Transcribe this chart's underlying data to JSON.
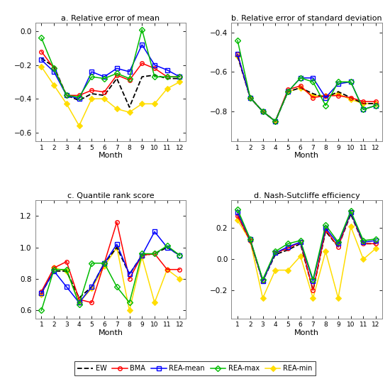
{
  "months": [
    1,
    2,
    3,
    4,
    5,
    6,
    7,
    8,
    9,
    10,
    11,
    12
  ],
  "panel_a": {
    "title": "a. Relative error of mean",
    "ylim": [
      -0.65,
      0.05
    ],
    "yticks": [
      0,
      -0.2,
      -0.4,
      -0.6
    ],
    "EW": [
      -0.16,
      -0.21,
      -0.38,
      -0.41,
      -0.37,
      -0.38,
      -0.28,
      -0.45,
      -0.27,
      -0.26,
      -0.28,
      -0.28
    ],
    "BMA": [
      -0.12,
      -0.22,
      -0.38,
      -0.38,
      -0.35,
      -0.36,
      -0.26,
      -0.29,
      -0.19,
      -0.22,
      -0.27,
      -0.27
    ],
    "REA_mean": [
      -0.17,
      -0.24,
      -0.38,
      -0.4,
      -0.24,
      -0.27,
      -0.22,
      -0.24,
      -0.08,
      -0.2,
      -0.23,
      -0.27
    ],
    "REA_max": [
      -0.04,
      -0.22,
      -0.38,
      -0.39,
      -0.27,
      -0.28,
      -0.25,
      -0.28,
      0.01,
      -0.27,
      -0.27,
      -0.27
    ],
    "REA_min": [
      -0.21,
      -0.32,
      -0.43,
      -0.56,
      -0.4,
      -0.4,
      -0.46,
      -0.48,
      -0.43,
      -0.43,
      -0.34,
      -0.3
    ]
  },
  "panel_b": {
    "title": "b. Relative error of standard deviation",
    "ylim": [
      -0.95,
      -0.35
    ],
    "yticks": [
      -0.4,
      -0.6,
      -0.8
    ],
    "EW": [
      -0.52,
      -0.73,
      -0.8,
      -0.85,
      -0.7,
      -0.68,
      -0.71,
      -0.73,
      -0.7,
      -0.73,
      -0.76,
      -0.76
    ],
    "BMA": [
      -0.51,
      -0.73,
      -0.8,
      -0.85,
      -0.69,
      -0.67,
      -0.73,
      -0.72,
      -0.72,
      -0.73,
      -0.75,
      -0.75
    ],
    "REA_mean": [
      -0.51,
      -0.73,
      -0.8,
      -0.85,
      -0.7,
      -0.63,
      -0.63,
      -0.73,
      -0.66,
      -0.65,
      -0.79,
      -0.77
    ],
    "REA_max": [
      -0.44,
      -0.73,
      -0.8,
      -0.85,
      -0.7,
      -0.63,
      -0.65,
      -0.77,
      -0.65,
      -0.65,
      -0.79,
      -0.77
    ],
    "REA_min": [
      -0.52,
      -0.73,
      -0.8,
      -0.85,
      -0.7,
      -0.68,
      -0.72,
      -0.72,
      -0.71,
      -0.74,
      -0.76,
      -0.76
    ]
  },
  "panel_c": {
    "title": "c. Quantile rank score",
    "ylim": [
      0.55,
      1.3
    ],
    "yticks": [
      0.6,
      0.8,
      1.0,
      1.2
    ],
    "EW": [
      0.71,
      0.85,
      0.85,
      0.68,
      0.75,
      0.9,
      1.0,
      0.83,
      0.95,
      0.96,
      1.0,
      0.95
    ],
    "BMA": [
      0.72,
      0.87,
      0.91,
      0.67,
      0.65,
      0.9,
      1.16,
      0.8,
      0.95,
      0.96,
      0.86,
      0.86
    ],
    "REA_mean": [
      0.71,
      0.85,
      0.75,
      0.65,
      0.75,
      0.9,
      1.02,
      0.83,
      0.95,
      1.1,
      1.0,
      0.95
    ],
    "REA_max": [
      0.6,
      0.86,
      0.86,
      0.64,
      0.9,
      0.9,
      0.75,
      0.65,
      0.96,
      0.96,
      1.01,
      0.95
    ],
    "REA_min": [
      0.7,
      0.87,
      0.85,
      0.65,
      0.74,
      0.88,
      1.0,
      0.6,
      0.94,
      0.65,
      0.86,
      0.8
    ]
  },
  "panel_d": {
    "title": "d. Nash-Sutcliffe efficiency",
    "ylim": [
      -0.38,
      0.38
    ],
    "yticks": [
      -0.2,
      0,
      0.2
    ],
    "EW": [
      0.28,
      0.12,
      -0.14,
      0.03,
      0.06,
      0.1,
      -0.2,
      0.18,
      0.08,
      0.29,
      0.1,
      0.1
    ],
    "BMA": [
      0.28,
      0.12,
      -0.14,
      0.04,
      0.07,
      0.11,
      -0.2,
      0.19,
      0.08,
      0.3,
      0.1,
      0.1
    ],
    "REA_mean": [
      0.3,
      0.13,
      -0.14,
      0.04,
      0.08,
      0.11,
      -0.14,
      0.2,
      0.1,
      0.3,
      0.11,
      0.12
    ],
    "REA_max": [
      0.32,
      0.13,
      -0.13,
      0.05,
      0.1,
      0.12,
      -0.13,
      0.22,
      0.11,
      0.31,
      0.12,
      0.13
    ],
    "REA_min": [
      0.25,
      0.12,
      -0.25,
      -0.07,
      -0.07,
      0.02,
      -0.25,
      0.05,
      -0.25,
      0.21,
      0.0,
      0.07
    ]
  },
  "colors": {
    "EW": "#000000",
    "BMA": "#ff0000",
    "REA_mean": "#0000ff",
    "REA_max": "#00bb00",
    "REA_min": "#ffdd00"
  },
  "xlabel": "Month"
}
